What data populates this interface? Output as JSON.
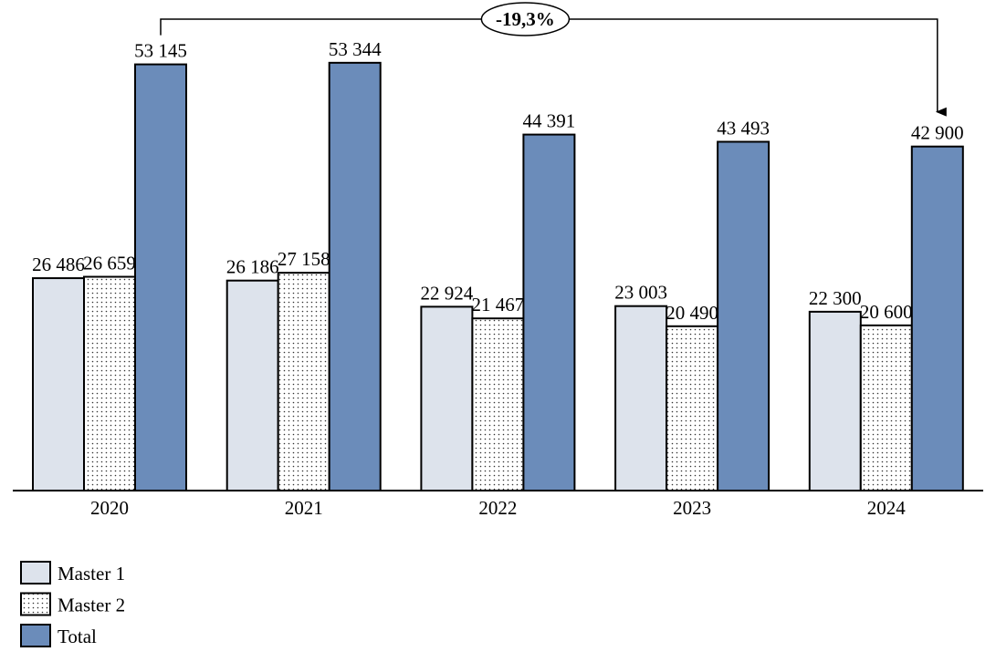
{
  "chart_data": {
    "type": "bar",
    "categories": [
      "2020",
      "2021",
      "2022",
      "2023",
      "2024"
    ],
    "series": [
      {
        "name": "Master 1",
        "values": [
          26486,
          26186,
          22924,
          23003,
          22300
        ],
        "labels": [
          "26 486",
          "26 186",
          "22 924",
          "23 003",
          "22 300"
        ],
        "fill": "#dde3ec",
        "pattern": "solid"
      },
      {
        "name": "Master 2",
        "values": [
          26659,
          27158,
          21467,
          20490,
          20600
        ],
        "labels": [
          "26 659",
          "27 158",
          "21 467",
          "20 490",
          "20 600"
        ],
        "fill": "#ffffff",
        "pattern": "dotted"
      },
      {
        "name": "Total",
        "values": [
          53145,
          53344,
          44391,
          43493,
          42900
        ],
        "labels": [
          "53 145",
          "53 344",
          "44 391",
          "43 493",
          "42 900"
        ],
        "fill": "#6b8cba",
        "pattern": "solid"
      }
    ],
    "ylim": [
      0,
      60000
    ],
    "grid": false,
    "legend_position": "bottom-left",
    "annotation": {
      "text": "-19,3%",
      "from_category": "2020",
      "to_category": "2024"
    }
  }
}
